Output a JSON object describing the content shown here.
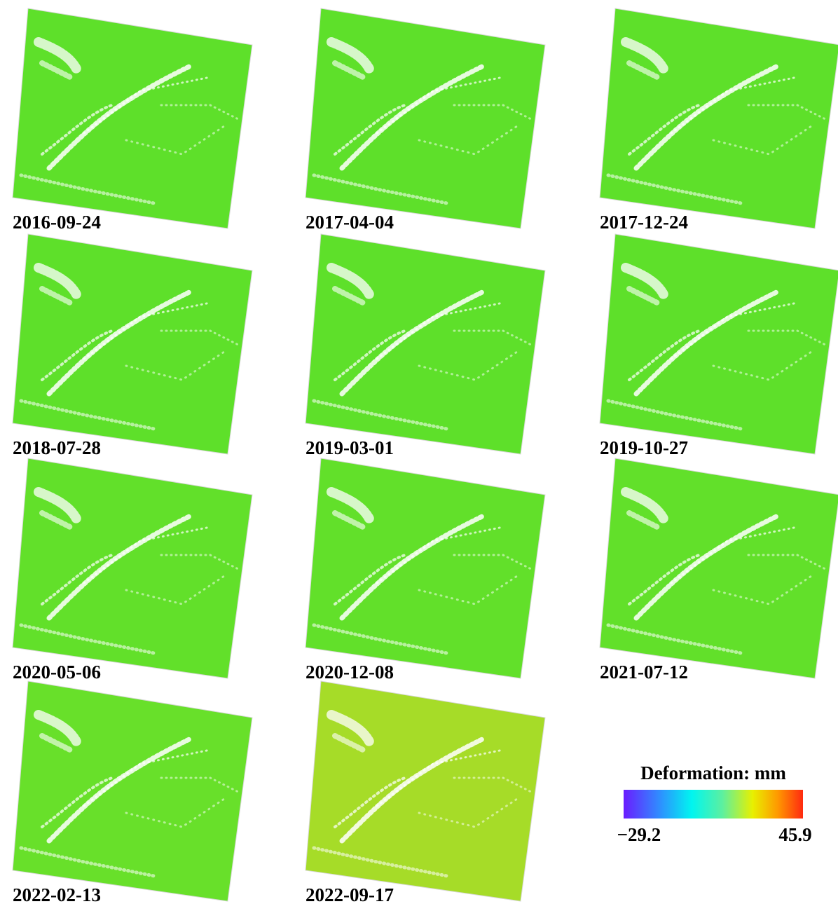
{
  "panels": [
    {
      "date": "2016-09-24",
      "color": "#5ee02a"
    },
    {
      "date": "2017-04-04",
      "color": "#5ee02a"
    },
    {
      "date": "2017-12-24",
      "color": "#5ee02a"
    },
    {
      "date": "2018-07-28",
      "color": "#5ee02a"
    },
    {
      "date": "2019-03-01",
      "color": "#5ee02a"
    },
    {
      "date": "2019-10-27",
      "color": "#5ee02a"
    },
    {
      "date": "2020-05-06",
      "color": "#62e02a"
    },
    {
      "date": "2020-12-08",
      "color": "#62e02a"
    },
    {
      "date": "2021-07-12",
      "color": "#62e02a"
    },
    {
      "date": "2022-02-13",
      "color": "#68e02a"
    },
    {
      "date": "2022-09-17",
      "color": "#a6dc28"
    }
  ],
  "legend": {
    "title": "Deformation: mm",
    "min": "−29.2",
    "max": "45.9"
  }
}
